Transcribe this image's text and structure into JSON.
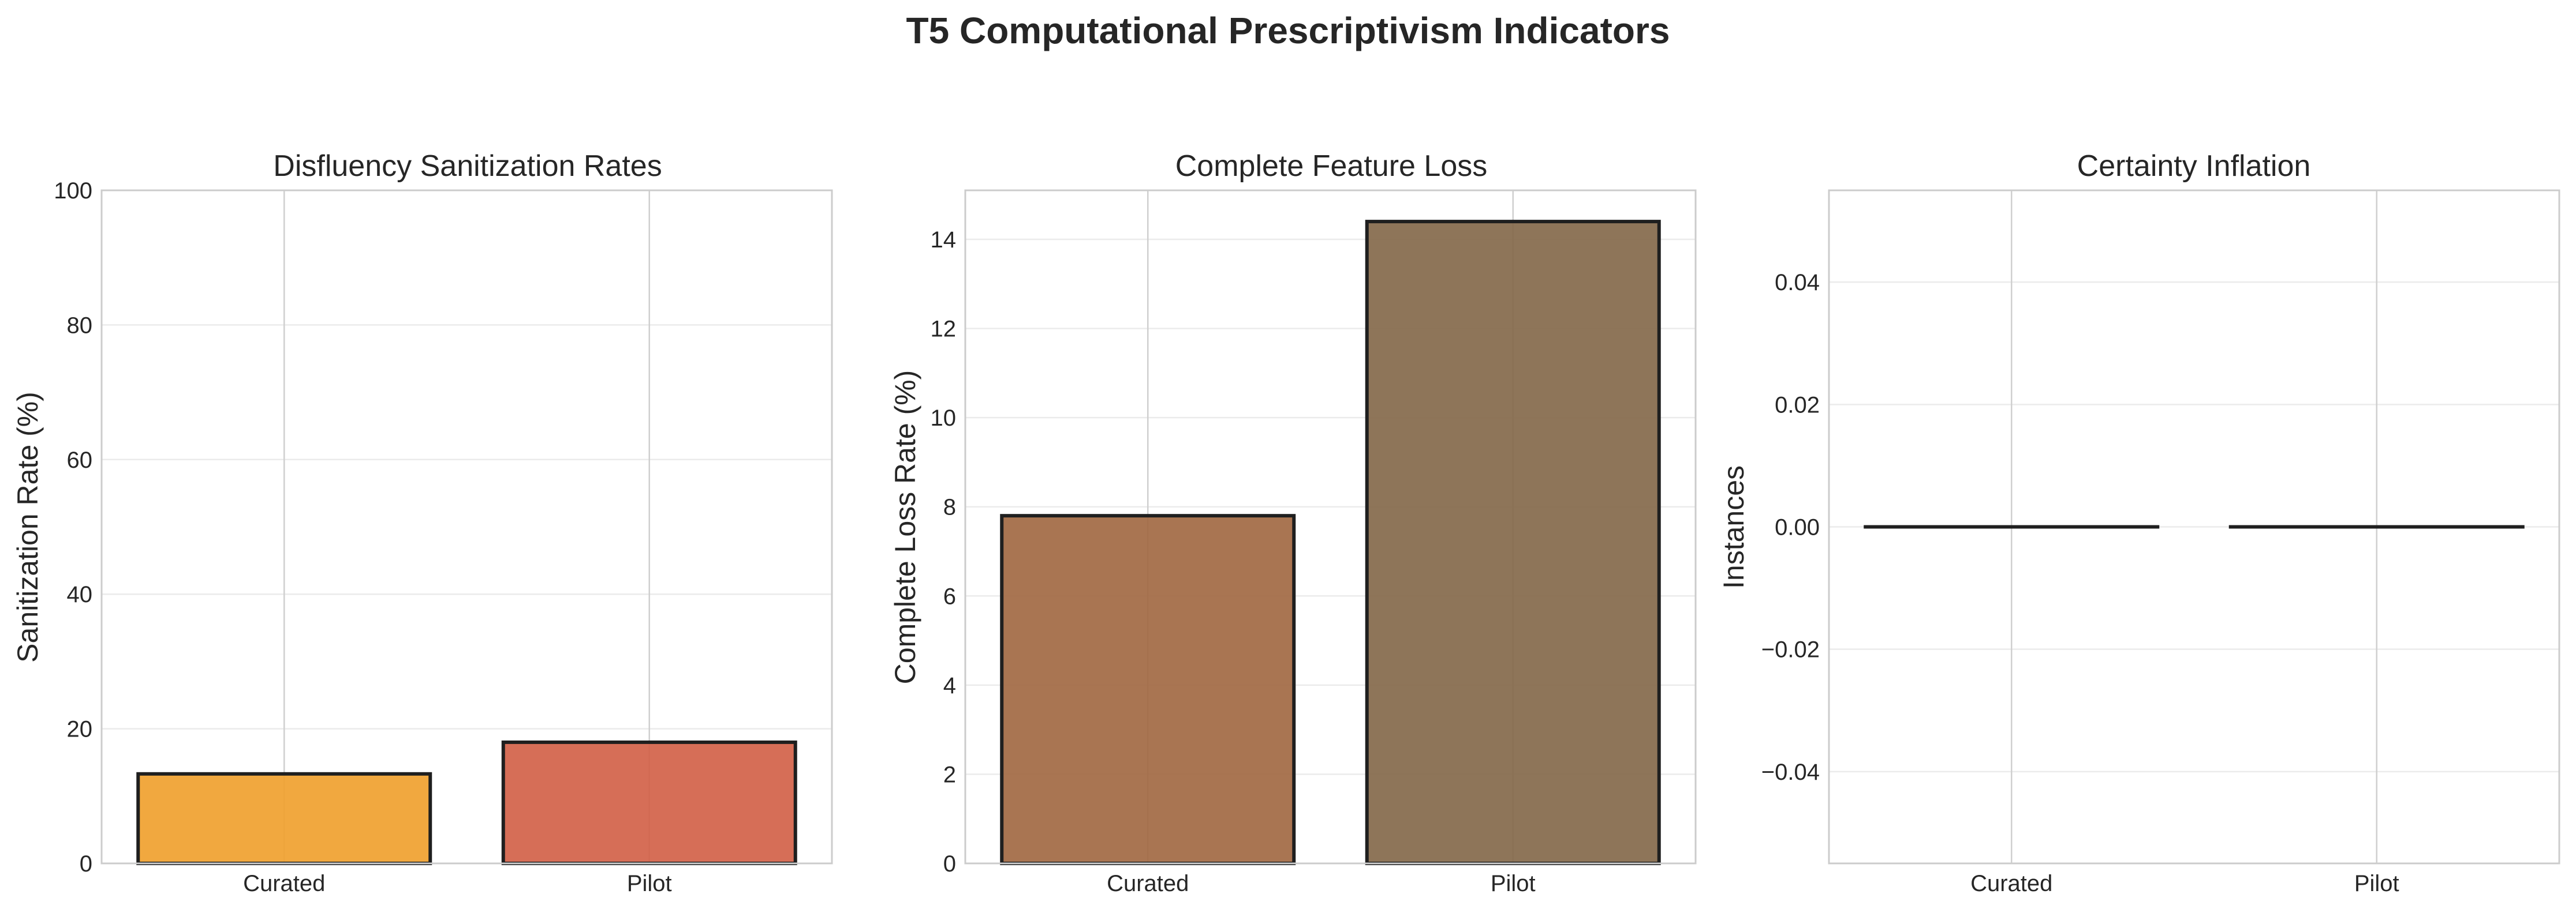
{
  "figure": {
    "suptitle": "T5 Computational Prescriptivism Indicators"
  },
  "chart_data": [
    {
      "type": "bar",
      "title": "Disfluency Sanitization Rates",
      "xlabel": "",
      "ylabel": "Sanitization Rate (%)",
      "categories": [
        "Curated",
        "Pilot"
      ],
      "values": [
        13.3,
        18.0
      ],
      "colors": [
        "#f0a12f",
        "#d26249"
      ],
      "ylim": [
        0,
        100
      ],
      "yticks": [
        0,
        20,
        40,
        60,
        80,
        100
      ],
      "ytick_labels": [
        "0",
        "20",
        "40",
        "60",
        "80",
        "100"
      ],
      "grid": true
    },
    {
      "type": "bar",
      "title": "Complete Feature Loss",
      "xlabel": "",
      "ylabel": "Complete Loss Rate (%)",
      "categories": [
        "Curated",
        "Pilot"
      ],
      "values": [
        7.8,
        14.4
      ],
      "colors": [
        "#a26943",
        "#84694b"
      ],
      "ylim": [
        0,
        15.1
      ],
      "yticks": [
        0,
        2,
        4,
        6,
        8,
        10,
        12,
        14
      ],
      "ytick_labels": [
        "0",
        "2",
        "4",
        "6",
        "8",
        "10",
        "12",
        "14"
      ],
      "grid": true
    },
    {
      "type": "bar",
      "title": "Certainty Inflation",
      "xlabel": "",
      "ylabel": "Instances",
      "categories": [
        "Curated",
        "Pilot"
      ],
      "values": [
        0,
        0
      ],
      "colors": [
        "#8e5c3d",
        "#6f5a48"
      ],
      "ylim": [
        -0.055,
        0.055
      ],
      "yticks": [
        -0.04,
        -0.02,
        0,
        0.02,
        0.04
      ],
      "ytick_labels": [
        "−0.04",
        "−0.02",
        "0.00",
        "0.02",
        "0.04"
      ],
      "grid": true
    }
  ]
}
